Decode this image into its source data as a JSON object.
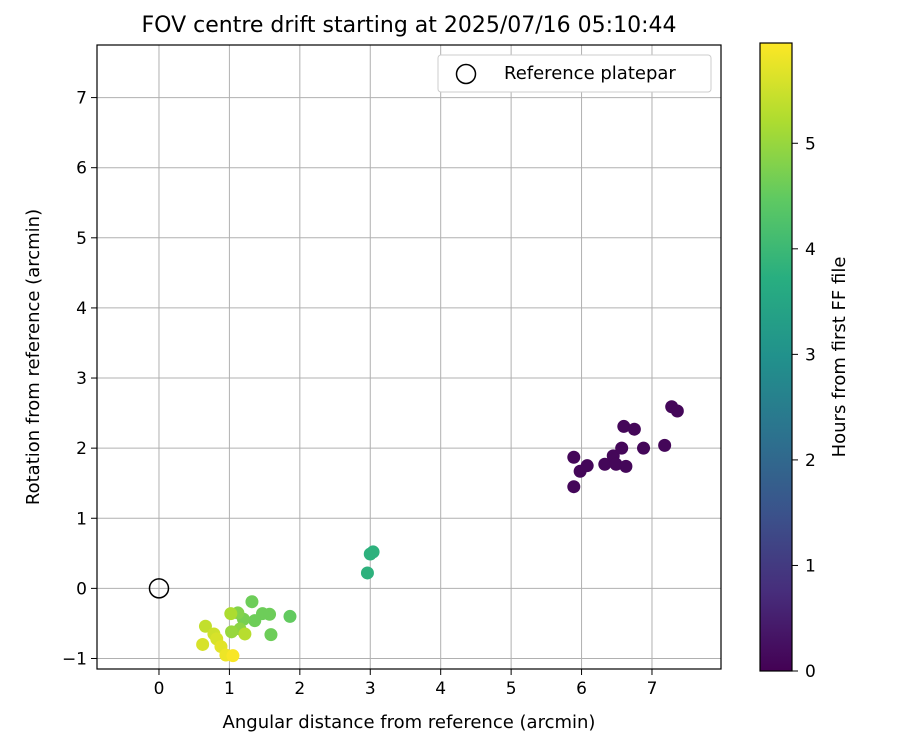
{
  "chart_data": {
    "type": "scatter",
    "title": "FOV centre drift starting at 2025/07/16 05:10:44",
    "xlabel": "Angular distance from reference (arcmin)",
    "ylabel": "Rotation from reference (arcmin)",
    "xlim": [
      -0.88,
      7.98
    ],
    "ylim": [
      -1.15,
      7.75
    ],
    "xticks": [
      0,
      1,
      2,
      3,
      4,
      5,
      6,
      7
    ],
    "yticks": [
      -1,
      0,
      1,
      2,
      3,
      4,
      5,
      6,
      7
    ],
    "grid": true,
    "legend": {
      "placement": "top-right",
      "entries": [
        "Reference platepar"
      ]
    },
    "reference_point": {
      "x": 0,
      "y": 0,
      "label": "Reference platepar"
    },
    "colorbar": {
      "label": "Hours from first FF file",
      "colormap": "viridis",
      "range": [
        0,
        5.95
      ],
      "ticks": [
        0,
        1,
        2,
        3,
        4,
        5
      ]
    },
    "points": [
      {
        "x": 5.89,
        "y": 1.87,
        "c": 0.1
      },
      {
        "x": 5.89,
        "y": 1.45,
        "c": 0.1
      },
      {
        "x": 5.98,
        "y": 1.67,
        "c": 0.1
      },
      {
        "x": 6.08,
        "y": 1.75,
        "c": 0.1
      },
      {
        "x": 6.33,
        "y": 1.77,
        "c": 0.1
      },
      {
        "x": 6.45,
        "y": 1.89,
        "c": 0.1
      },
      {
        "x": 6.49,
        "y": 1.77,
        "c": 0.1
      },
      {
        "x": 6.57,
        "y": 2.0,
        "c": 0.1
      },
      {
        "x": 6.6,
        "y": 2.31,
        "c": 0.1
      },
      {
        "x": 6.63,
        "y": 1.74,
        "c": 0.1
      },
      {
        "x": 6.75,
        "y": 2.27,
        "c": 0.1
      },
      {
        "x": 6.88,
        "y": 2.0,
        "c": 0.1
      },
      {
        "x": 7.18,
        "y": 2.04,
        "c": 0.1
      },
      {
        "x": 7.28,
        "y": 2.59,
        "c": 0.1
      },
      {
        "x": 7.36,
        "y": 2.53,
        "c": 0.1
      },
      {
        "x": 2.96,
        "y": 0.22,
        "c": 3.8
      },
      {
        "x": 3.0,
        "y": 0.49,
        "c": 3.8
      },
      {
        "x": 3.04,
        "y": 0.52,
        "c": 3.8
      },
      {
        "x": 1.86,
        "y": -0.4,
        "c": 4.5
      },
      {
        "x": 1.59,
        "y": -0.66,
        "c": 4.6
      },
      {
        "x": 1.57,
        "y": -0.37,
        "c": 4.6
      },
      {
        "x": 1.47,
        "y": -0.36,
        "c": 4.6
      },
      {
        "x": 1.36,
        "y": -0.46,
        "c": 4.6
      },
      {
        "x": 1.32,
        "y": -0.19,
        "c": 4.6
      },
      {
        "x": 1.2,
        "y": -0.44,
        "c": 4.7
      },
      {
        "x": 1.12,
        "y": -0.35,
        "c": 4.8
      },
      {
        "x": 1.15,
        "y": -0.58,
        "c": 4.9
      },
      {
        "x": 1.03,
        "y": -0.62,
        "c": 5.0
      },
      {
        "x": 1.02,
        "y": -0.36,
        "c": 5.2
      },
      {
        "x": 1.22,
        "y": -0.65,
        "c": 5.3
      },
      {
        "x": 0.66,
        "y": -0.54,
        "c": 5.4
      },
      {
        "x": 0.78,
        "y": -0.65,
        "c": 5.5
      },
      {
        "x": 0.82,
        "y": -0.72,
        "c": 5.6
      },
      {
        "x": 0.62,
        "y": -0.8,
        "c": 5.6
      },
      {
        "x": 0.88,
        "y": -0.83,
        "c": 5.7
      },
      {
        "x": 0.95,
        "y": -0.95,
        "c": 5.8
      },
      {
        "x": 1.05,
        "y": -0.96,
        "c": 5.9
      }
    ]
  }
}
